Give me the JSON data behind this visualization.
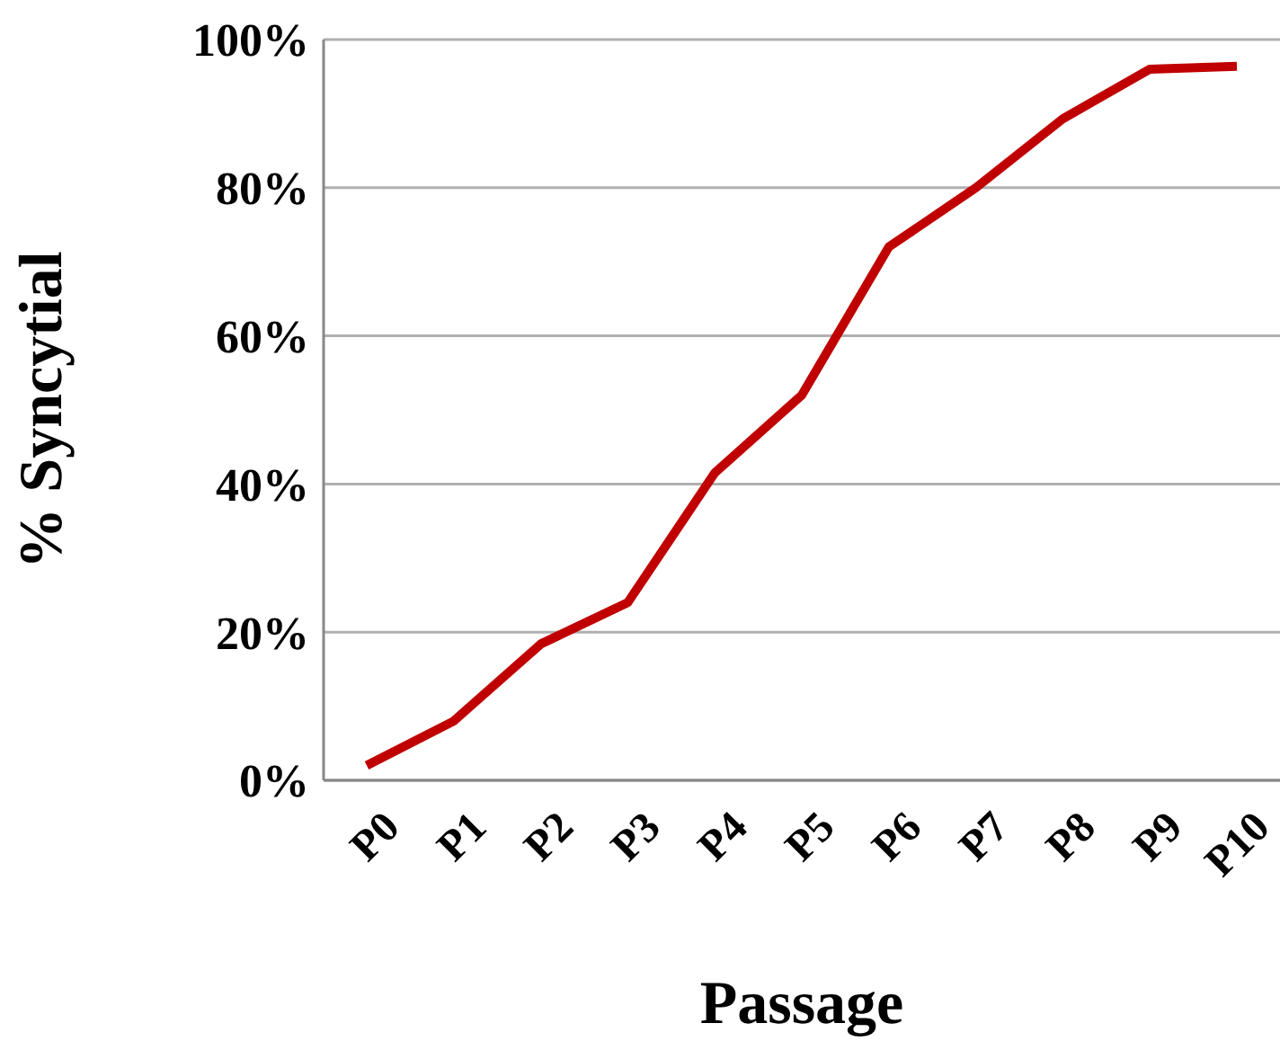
{
  "chart_data": {
    "type": "line",
    "xlabel": "Passage",
    "ylabel": "% Syncytial",
    "categories": [
      "P0",
      "P1",
      "P2",
      "P3",
      "P4",
      "P5",
      "P6",
      "P7",
      "P8",
      "P9",
      "P10"
    ],
    "series": [
      {
        "color": "#c00000",
        "values": [
          2,
          8,
          18.4,
          24,
          41.5,
          52,
          72,
          80,
          89.3,
          96,
          96.4
        ]
      }
    ],
    "ylim": [
      0,
      100
    ],
    "yticks": [
      {
        "value": 0,
        "label": "0%"
      },
      {
        "value": 20,
        "label": "20%"
      },
      {
        "value": 40,
        "label": "40%"
      },
      {
        "value": 60,
        "label": "60%"
      },
      {
        "value": 80,
        "label": "80%"
      },
      {
        "value": 100,
        "label": "100%"
      }
    ],
    "grid": "y",
    "legend": false,
    "marker": "none",
    "line_style": "solid"
  }
}
